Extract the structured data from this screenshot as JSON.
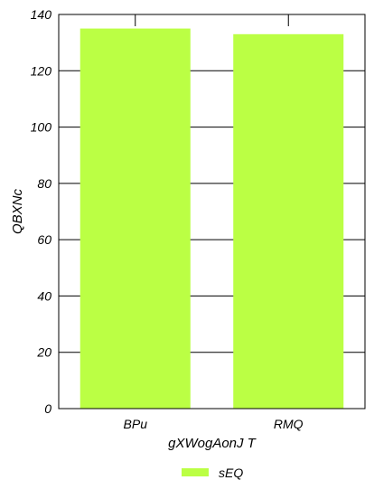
{
  "chart_data": {
    "type": "bar",
    "title": "",
    "xlabel": "gXWogAonJ T",
    "ylabel": "QBXNc",
    "categories": [
      "BPu",
      "RMQ"
    ],
    "series": [
      {
        "name": "sEQ",
        "values": [
          135,
          133
        ],
        "color": "#bbff44"
      }
    ],
    "ylim": [
      0,
      140
    ],
    "yticks": [
      0,
      20,
      40,
      60,
      80,
      100,
      120,
      140
    ],
    "grid": {
      "y": true,
      "x": false
    },
    "legend": {
      "position": "bottom-center"
    }
  }
}
